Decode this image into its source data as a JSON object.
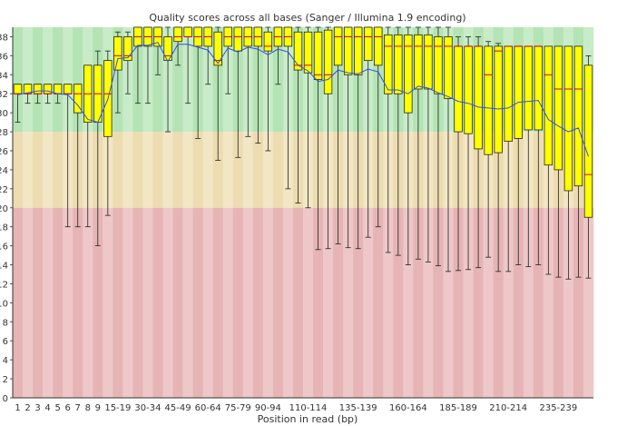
{
  "chart_data": {
    "type": "boxplot",
    "title": "Quality scores across all bases (Sanger / Illumina 1.9 encoding)",
    "xlabel": "Position in read (bp)",
    "ylabel": "",
    "ylim": [
      0,
      39
    ],
    "yticks": [
      0,
      2,
      4,
      6,
      8,
      10,
      12,
      14,
      16,
      18,
      20,
      22,
      24,
      26,
      28,
      30,
      32,
      34,
      36,
      38
    ],
    "bands": [
      {
        "from": 28,
        "to": 39,
        "color": "#b4e3b4",
        "alt_color": "#c8ecc8"
      },
      {
        "from": 20,
        "to": 28,
        "color": "#ecdcb0",
        "alt_color": "#f2e6c4"
      },
      {
        "from": 0,
        "to": 20,
        "color": "#e6b4b4",
        "alt_color": "#eec8c8"
      }
    ],
    "box_color": "#ffff00",
    "median_color": "#d00000",
    "mean_line_color": "#3050e0",
    "categories": [
      "1",
      "2",
      "3",
      "4",
      "5",
      "6",
      "7",
      "8",
      "9",
      "10-14",
      "15-19",
      "20-24",
      "25-29",
      "30-34",
      "35-39",
      "40-44",
      "45-49",
      "50-54",
      "55-59",
      "60-64",
      "65-69",
      "70-74",
      "75-79",
      "80-84",
      "85-89",
      "90-94",
      "95-99",
      "100-104",
      "105-109",
      "110-114",
      "115-119",
      "120-124",
      "125-129",
      "130-134",
      "135-139",
      "140-144",
      "145-149",
      "150-154",
      "155-159",
      "160-164",
      "165-169",
      "170-174",
      "175-179",
      "180-184",
      "185-189",
      "190-194",
      "195-199",
      "200-204",
      "205-209",
      "210-214",
      "215-219",
      "220-224",
      "225-229",
      "230-234",
      "235-239",
      "240-244",
      "245-249",
      "250-251"
    ],
    "visible_tick_labels": [
      "1",
      "2",
      "3",
      "4",
      "5",
      "6",
      "7",
      "8",
      "9",
      "15-19",
      "30-34",
      "45-49",
      "60-64",
      "75-79",
      "90-94",
      "110-114",
      "135-139",
      "160-164",
      "185-189",
      "210-214",
      "235-239"
    ],
    "q1": [
      32.0,
      32.0,
      32.0,
      32.0,
      32.0,
      32.0,
      30.0,
      29.0,
      29.0,
      27.5,
      34.5,
      35.5,
      37.0,
      37.0,
      37.0,
      35.5,
      37.5,
      38.0,
      37.0,
      37.0,
      35.0,
      37.0,
      36.5,
      37.0,
      37.0,
      36.5,
      37.0,
      37.0,
      34.5,
      34.2,
      33.5,
      32.0,
      35.0,
      34.0,
      34.0,
      35.5,
      35.0,
      32.0,
      32.0,
      30.0,
      32.5,
      32.5,
      32.0,
      31.5,
      28.0,
      27.8,
      26.2,
      25.6,
      25.8,
      27.0,
      27.3,
      28.2,
      28.2,
      24.5,
      24.0,
      21.8,
      22.3,
      19.0
    ],
    "median": [
      32.0,
      32.0,
      32.0,
      32.0,
      32.0,
      32.0,
      32.0,
      32.0,
      32.0,
      32.0,
      36.0,
      36.0,
      38.0,
      38.0,
      38.0,
      36.0,
      38.0,
      38.0,
      38.0,
      38.0,
      35.5,
      38.0,
      38.0,
      38.0,
      38.0,
      37.0,
      38.0,
      38.0,
      35.0,
      35.0,
      34.0,
      34.0,
      38.0,
      38.0,
      38.0,
      38.0,
      38.0,
      37.0,
      37.0,
      37.0,
      37.0,
      37.0,
      37.0,
      37.0,
      37.0,
      37.0,
      37.0,
      34.0,
      36.5,
      37.0,
      37.0,
      37.0,
      37.0,
      34.0,
      32.5,
      32.5,
      32.5,
      23.5
    ],
    "q3": [
      33.0,
      33.0,
      33.0,
      33.0,
      33.0,
      33.0,
      33.0,
      35.0,
      35.0,
      35.5,
      38.0,
      38.0,
      39.0,
      39.0,
      39.0,
      38.0,
      39.0,
      39.0,
      39.0,
      39.0,
      38.5,
      39.0,
      39.0,
      39.0,
      39.0,
      38.5,
      39.0,
      39.0,
      38.5,
      38.5,
      38.5,
      38.7,
      39.0,
      39.0,
      39.0,
      39.0,
      39.0,
      38.2,
      38.2,
      38.2,
      38.2,
      38.2,
      38.0,
      38.0,
      37.0,
      37.0,
      37.0,
      37.0,
      37.0,
      37.0,
      37.0,
      37.0,
      37.0,
      37.0,
      37.0,
      37.0,
      37.0,
      35.0
    ],
    "lower_whisker": [
      29.0,
      31.0,
      31.0,
      31.0,
      31.0,
      18.0,
      18.0,
      18.0,
      16.0,
      19.2,
      30.0,
      32.0,
      31.0,
      31.0,
      34.0,
      28.0,
      35.0,
      31.0,
      27.3,
      33.0,
      25.0,
      32.0,
      25.3,
      27.5,
      26.8,
      26.0,
      33.0,
      22.0,
      20.5,
      20.0,
      15.6,
      15.7,
      16.2,
      15.8,
      15.7,
      16.9,
      18.0,
      15.3,
      15.0,
      14.0,
      14.6,
      14.3,
      13.9,
      13.3,
      13.4,
      13.5,
      13.7,
      14.8,
      13.3,
      13.3,
      14.0,
      13.8,
      14.0,
      13.0,
      12.7,
      12.5,
      12.7,
      12.6
    ],
    "upper_whisker": [
      33.0,
      33.0,
      33.0,
      33.0,
      33.0,
      33.0,
      33.0,
      35.0,
      36.5,
      36.5,
      38.5,
      38.5,
      39.0,
      39.0,
      39.0,
      39.0,
      39.0,
      39.0,
      39.0,
      39.0,
      39.0,
      39.0,
      39.0,
      39.0,
      39.0,
      39.0,
      39.0,
      39.0,
      39.0,
      39.0,
      39.0,
      39.0,
      39.0,
      39.0,
      39.0,
      39.0,
      39.0,
      39.0,
      39.0,
      39.0,
      39.0,
      39.0,
      39.0,
      39.0,
      38.0,
      38.0,
      38.0,
      37.5,
      37.3,
      37.0,
      37.0,
      37.0,
      37.0,
      37.0,
      37.0,
      37.0,
      37.0,
      36.0
    ],
    "mean": [
      31.9,
      32.1,
      32.3,
      32.3,
      32.0,
      31.9,
      30.8,
      29.3,
      29.0,
      31.4,
      35.7,
      35.8,
      37.1,
      37.1,
      37.4,
      35.4,
      37.2,
      37.2,
      36.9,
      36.6,
      35.2,
      36.8,
      36.4,
      36.9,
      36.7,
      36.1,
      36.7,
      36.4,
      35.0,
      34.4,
      33.3,
      33.5,
      34.5,
      34.2,
      34.1,
      34.6,
      34.3,
      32.4,
      32.4,
      32.0,
      32.8,
      32.6,
      32.1,
      31.7,
      31.2,
      31.0,
      30.6,
      30.5,
      30.4,
      30.5,
      31.1,
      31.2,
      31.3,
      29.3,
      28.6,
      28.0,
      28.4,
      25.4
    ]
  }
}
